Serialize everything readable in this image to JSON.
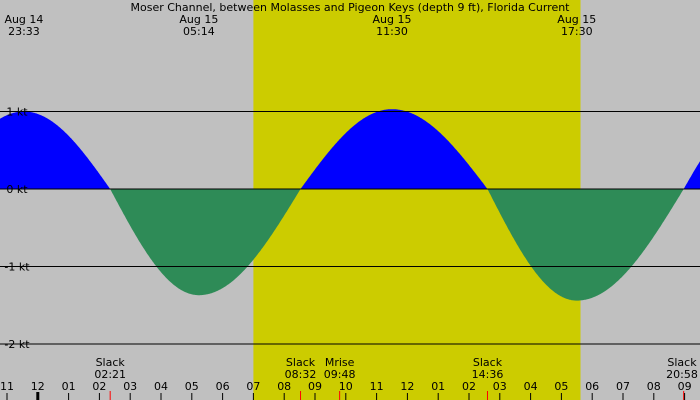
{
  "chart_data": {
    "type": "area",
    "title": "Moser Channel, between Molasses and Pigeon Keys (depth 9 ft), Florida Current",
    "ylabel": "",
    "ylim": [
      -2.1,
      1.45
    ],
    "yticks": [
      {
        "value": 1,
        "label": "1 kt"
      },
      {
        "value": 0,
        "label": "0 kt"
      },
      {
        "value": -1,
        "label": "-1 kt"
      },
      {
        "value": -2,
        "label": "-2 kt"
      }
    ],
    "x_unit": "hours after Aug 14 00:00",
    "xlim": [
      23,
      33.5
    ],
    "daylight": {
      "start": 31.0,
      "end": 41.62
    },
    "extrema_labels": [
      {
        "date": "Aug 14",
        "time": "23:33",
        "value": 1.0,
        "t": 23.55
      },
      {
        "date": "Aug 15",
        "time": "05:14",
        "value": -1.37,
        "t": 29.23
      },
      {
        "date": "Aug 15",
        "time": "11:30",
        "value": 1.03,
        "t": 35.5
      },
      {
        "date": "Aug 15",
        "time": "17:30",
        "value": -1.44,
        "t": 41.5
      }
    ],
    "slack_labels": [
      {
        "label": "Slack",
        "time": "02:21",
        "t": 26.35
      },
      {
        "label": "Slack",
        "time": "08:32",
        "t": 32.53
      },
      {
        "label": "Mrise",
        "time": "09:48",
        "t": 33.8
      },
      {
        "label": "Slack",
        "time": "14:36",
        "t": 38.6
      },
      {
        "label": "Slack",
        "time": "20:58",
        "t": 44.97
      }
    ],
    "curve_points": [
      {
        "t": 23.55,
        "v": 1.0
      },
      {
        "t": 26.35,
        "v": 0.0
      },
      {
        "t": 29.23,
        "v": -1.37
      },
      {
        "t": 32.53,
        "v": 0.0
      },
      {
        "t": 35.5,
        "v": 1.03
      },
      {
        "t": 38.6,
        "v": 0.0
      },
      {
        "t": 41.5,
        "v": -1.44
      },
      {
        "t": 44.97,
        "v": 0.0
      },
      {
        "t": 47.0,
        "v": 0.9
      }
    ],
    "hour_ticks": [
      "11",
      "12",
      "01",
      "02",
      "03",
      "04",
      "05",
      "06",
      "07",
      "08",
      "09",
      "10",
      "11",
      "12",
      "01",
      "02",
      "03",
      "04",
      "05",
      "06",
      "07",
      "08",
      "09"
    ],
    "colors": {
      "background": "#c0c0c0",
      "daylight": "#cccc00",
      "flood": "#0000ff",
      "ebb": "#2e8b57",
      "gridline": "#000000",
      "marker": "#ff0000"
    }
  }
}
